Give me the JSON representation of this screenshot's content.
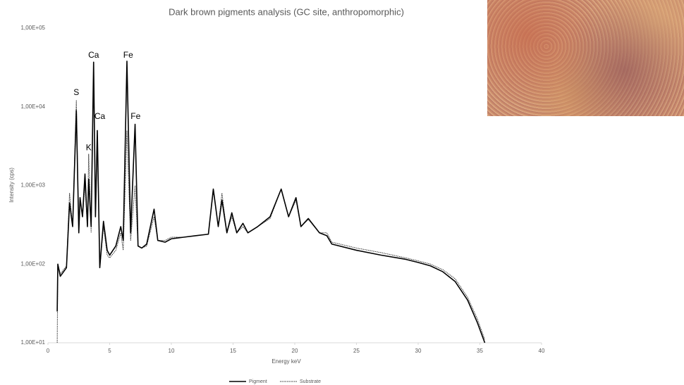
{
  "chart_data": {
    "type": "line",
    "title": "Dark brown pigments analysis (GC site, anthropomorphic)",
    "x_label": "Energy keV",
    "y_label": "Intensity (cps)",
    "log_scale": true,
    "grid": false,
    "legend": "bottom",
    "xlim": [
      0,
      40
    ],
    "xticks": [
      0,
      5,
      10,
      15,
      20,
      25,
      30,
      35,
      40
    ],
    "ylim": [
      10,
      100000
    ],
    "yticks": [
      {
        "value": 10,
        "label": "1,00E+01"
      },
      {
        "value": 100,
        "label": "1,00E+02"
      },
      {
        "value": 1000,
        "label": "1,00E+03"
      },
      {
        "value": 10000,
        "label": "1,00E+04"
      },
      {
        "value": 100000,
        "label": "1,00E+05"
      }
    ],
    "x": [
      0.75,
      0.8,
      1.0,
      1.5,
      1.75,
      2.0,
      2.3,
      2.5,
      2.6,
      2.8,
      3.0,
      3.2,
      3.3,
      3.5,
      3.7,
      3.85,
      4.0,
      4.2,
      4.5,
      4.8,
      5.0,
      5.5,
      5.9,
      6.1,
      6.4,
      6.7,
      7.06,
      7.3,
      7.6,
      8.0,
      8.6,
      8.9,
      9.5,
      10,
      11,
      12,
      13,
      13.4,
      13.8,
      14.1,
      14.5,
      14.9,
      15.3,
      15.8,
      16.2,
      17,
      18,
      18.9,
      19.5,
      20.1,
      20.5,
      21.1,
      22,
      22.6,
      23,
      25,
      27,
      29,
      30,
      31,
      32,
      33,
      34,
      34.8,
      35.4
    ],
    "series": [
      {
        "name": "Substrate",
        "color": "#333333",
        "line_style": "dotted",
        "values": [
          10,
          100,
          75,
          95,
          800,
          300,
          12000,
          250,
          650,
          400,
          1000,
          300,
          2500,
          250,
          30000,
          400,
          4000,
          90,
          300,
          130,
          120,
          150,
          250,
          150,
          5000,
          200,
          1000,
          170,
          160,
          170,
          400,
          200,
          200,
          220,
          220,
          230,
          240,
          850,
          300,
          800,
          250,
          400,
          250,
          300,
          250,
          300,
          380,
          900,
          400,
          650,
          300,
          370,
          250,
          250,
          190,
          160,
          140,
          120,
          110,
          100,
          85,
          65,
          38,
          20,
          11
        ]
      },
      {
        "name": "Pigment",
        "color": "#000000",
        "line_style": "solid",
        "values": [
          25,
          100,
          70,
          90,
          600,
          300,
          9000,
          250,
          700,
          400,
          1400,
          300,
          1200,
          300,
          37000,
          400,
          5000,
          90,
          350,
          150,
          130,
          170,
          300,
          200,
          38000,
          250,
          6000,
          170,
          160,
          180,
          500,
          200,
          190,
          210,
          220,
          230,
          240,
          900,
          300,
          650,
          250,
          450,
          250,
          330,
          250,
          300,
          400,
          900,
          400,
          700,
          300,
          380,
          250,
          230,
          180,
          150,
          130,
          115,
          105,
          95,
          80,
          60,
          35,
          18,
          10
        ]
      }
    ],
    "annotations": [
      {
        "text": "S",
        "x": 2.3,
        "y": 15000
      },
      {
        "text": "Ca",
        "x": 3.7,
        "y": 45000
      },
      {
        "text": "K",
        "x": 3.3,
        "y": 3000
      },
      {
        "text": "Ca",
        "x": 4.2,
        "y": 7500
      },
      {
        "text": "Fe",
        "x": 6.5,
        "y": 45000
      },
      {
        "text": "Fe",
        "x": 7.1,
        "y": 7500
      }
    ]
  }
}
